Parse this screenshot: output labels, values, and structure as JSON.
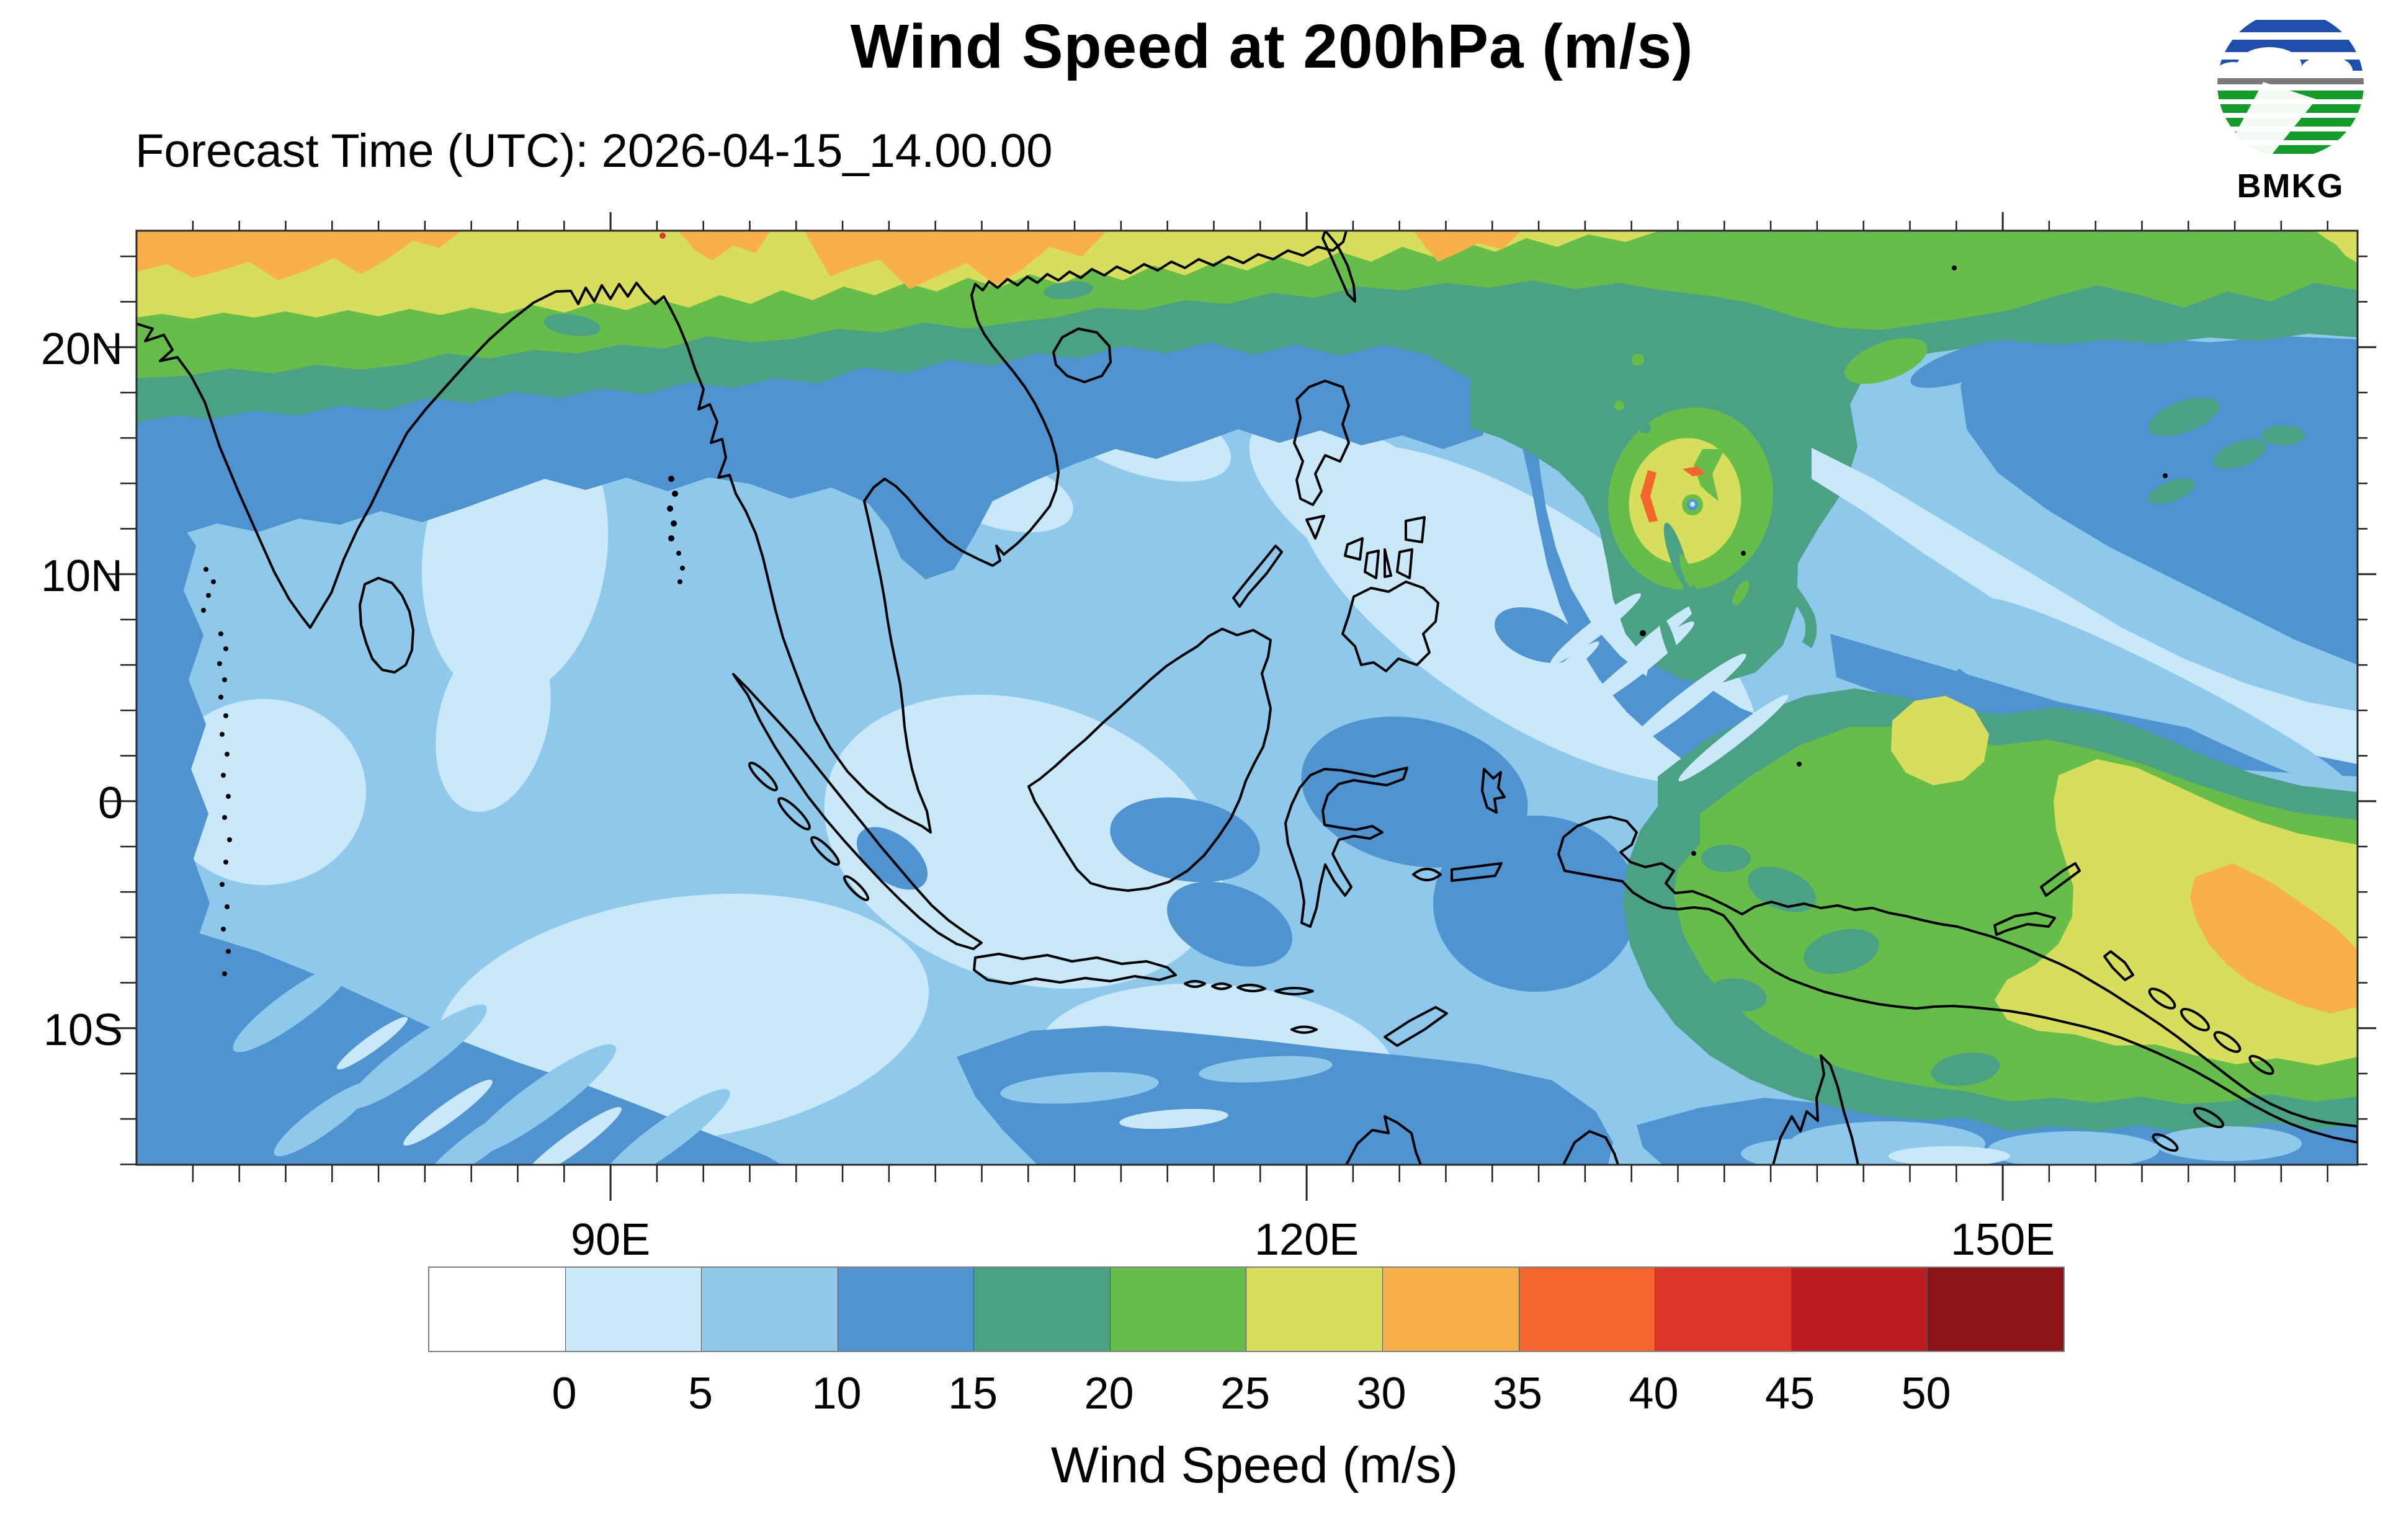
{
  "header": {
    "title": "Wind Speed at 200hPa (m/s)",
    "subtitle": "Forecast Time (UTC): 2026-04-15_14.00.00",
    "logo": {
      "text": "BMKG",
      "blue": "#1f4fae",
      "green": "#149c28",
      "gray": "#7a7a7a"
    }
  },
  "chart_data": {
    "type": "heatmap",
    "title": "Wind Speed at 200hPa (m/s)",
    "forecast_time_utc": "2026-04-15_14.00.00",
    "variable": "Wind Speed",
    "level": "200hPa",
    "units": "m/s",
    "x_axis": {
      "tick_labels": [
        "90E",
        "120E",
        "150E"
      ],
      "tick_lons": [
        90,
        120,
        150
      ],
      "range_lon_deg_east": [
        69.6,
        165.3
      ],
      "minor_tick_interval_deg": 2
    },
    "y_axis": {
      "tick_labels": [
        "20N",
        "10N",
        "0",
        "10S"
      ],
      "tick_lats": [
        20,
        10,
        0,
        -10
      ],
      "range_lat_deg_north": [
        -16.1,
        25.1
      ],
      "minor_tick_interval_deg": 2
    },
    "colorbar": {
      "label": "Wind Speed (m/s)",
      "tick_labels": [
        "0",
        "5",
        "10",
        "15",
        "20",
        "25",
        "30",
        "35",
        "40",
        "45",
        "50"
      ],
      "levels_m_per_s": [
        0,
        5,
        10,
        15,
        20,
        25,
        30,
        35,
        40,
        45,
        50
      ],
      "colors": [
        "#ffffff",
        "#c9e8f9",
        "#8ec8ea",
        "#4f94d0",
        "#4aa183",
        "#66bd4a",
        "#d6de5c",
        "#f8b04a",
        "#f2662c",
        "#dd3528",
        "#ba1d22",
        "#8c1418"
      ],
      "bin_ranges_m_per_s": [
        "<0",
        "0-5",
        "5-10",
        "10-15",
        "15-20",
        "20-25",
        "25-30",
        "30-35",
        "35-40",
        "40-45",
        "45-50",
        ">50"
      ]
    },
    "features": [
      {
        "name": "subtropical westerly jet",
        "where": "north edge of domain, 20N-25N, 70E-120E",
        "speed_m_per_s": "20-35, locally >30 near the north-west corner"
      },
      {
        "name": "tropical cyclone circulation",
        "where": "about 136E, 13.5N (Philippine Sea)",
        "speed_m_per_s": "spiral ring 15-35 with small 30-35 arcs, near-calm eye <10"
      },
      {
        "name": "south-easterly jet over New Guinea / Solomon Sea",
        "where": "128E-162E, 0-12S",
        "speed_m_per_s": "15-30, with 25-35 streak toward the south-east corner"
      },
      {
        "name": "light-wind regions",
        "where": "equatorial Indian Ocean, South China Sea, Java Sea",
        "speed_m_per_s": "0-10"
      }
    ]
  },
  "map": {
    "coastline_color": "#000000",
    "frame_color": "#2a2a2a"
  }
}
